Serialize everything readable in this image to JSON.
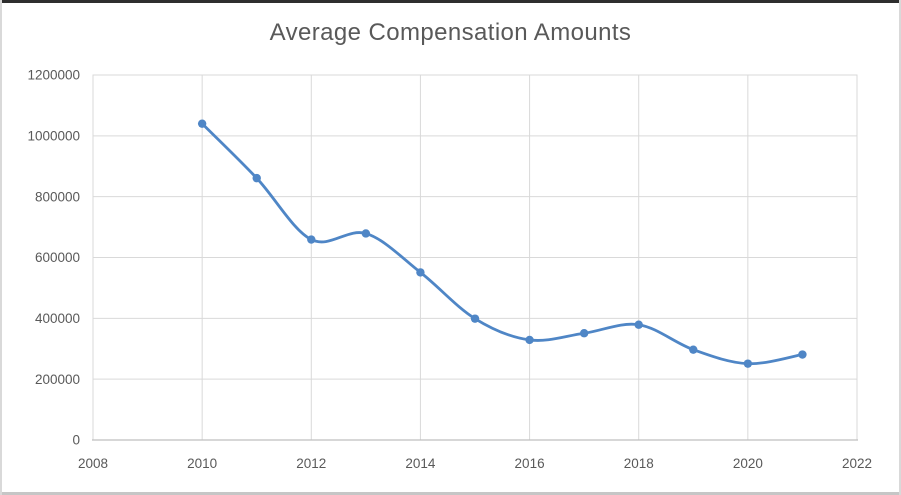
{
  "window": {
    "background": "#ffffff",
    "top_edge_color": "#2e2e2e",
    "bottom_edge_color": "#c6c6c6",
    "side_border_color": "#d9d9d9"
  },
  "chart_data": {
    "type": "line",
    "title": "Average Compensation Amounts",
    "x": [
      2010,
      2011,
      2012,
      2013,
      2014,
      2015,
      2016,
      2017,
      2018,
      2019,
      2020,
      2021
    ],
    "values": [
      1040000,
      861000,
      659000,
      679000,
      551000,
      399000,
      329000,
      351000,
      379000,
      297000,
      251000,
      281000
    ],
    "xlabel": "",
    "ylabel": "",
    "xlim": [
      2008,
      2022
    ],
    "ylim": [
      0,
      1200000
    ],
    "xticks": [
      2008,
      2010,
      2012,
      2014,
      2016,
      2018,
      2020,
      2022
    ],
    "xtick_labels": [
      "2008",
      "2010",
      "2012",
      "2014",
      "2016",
      "2018",
      "2020",
      "2022"
    ],
    "yticks": [
      0,
      200000,
      400000,
      600000,
      800000,
      1000000,
      1200000
    ],
    "ytick_labels": [
      "0",
      "200000",
      "400000",
      "600000",
      "800000",
      "1000000",
      "1200000"
    ],
    "grid": true,
    "legend": false,
    "smoothed": true,
    "line_color": "#4f86c6",
    "marker_color": "#4f86c6",
    "gridline_color": "#d9d9d9",
    "plot_border_color": "#d9d9d9",
    "axis_line_color": "#bfbfbf",
    "tick_label_color": "#595959",
    "title_color": "#595959"
  }
}
